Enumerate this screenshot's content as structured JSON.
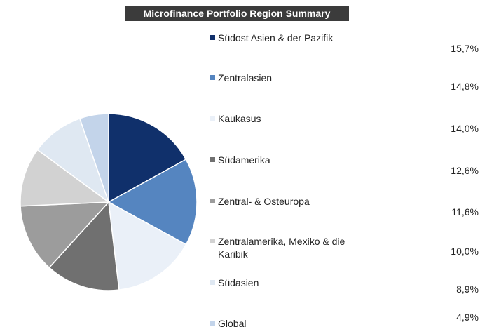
{
  "chart_data": {
    "type": "pie",
    "title": "Microfinance Portfolio Region Summary",
    "categories": [
      "Südost Asien & der Pazifik",
      "Zentralasien",
      "Kaukasus",
      "Südamerika",
      "Zentral- & Osteuropa",
      "Zentralamerika, Mexiko & die Karibik",
      "Südasien",
      "Global"
    ],
    "values": [
      15.7,
      14.8,
      14.0,
      12.6,
      11.6,
      10.0,
      8.9,
      4.9
    ],
    "value_labels": [
      "15,7%",
      "14,8%",
      "14,0%",
      "12,6%",
      "11,6%",
      "10,0%",
      "8,9%",
      "4,9%"
    ],
    "colors": [
      "#10306b",
      "#5585c0",
      "#eaf0f8",
      "#707070",
      "#9c9c9c",
      "#d2d2d2",
      "#dfe8f2",
      "#c3d4ea"
    ]
  }
}
